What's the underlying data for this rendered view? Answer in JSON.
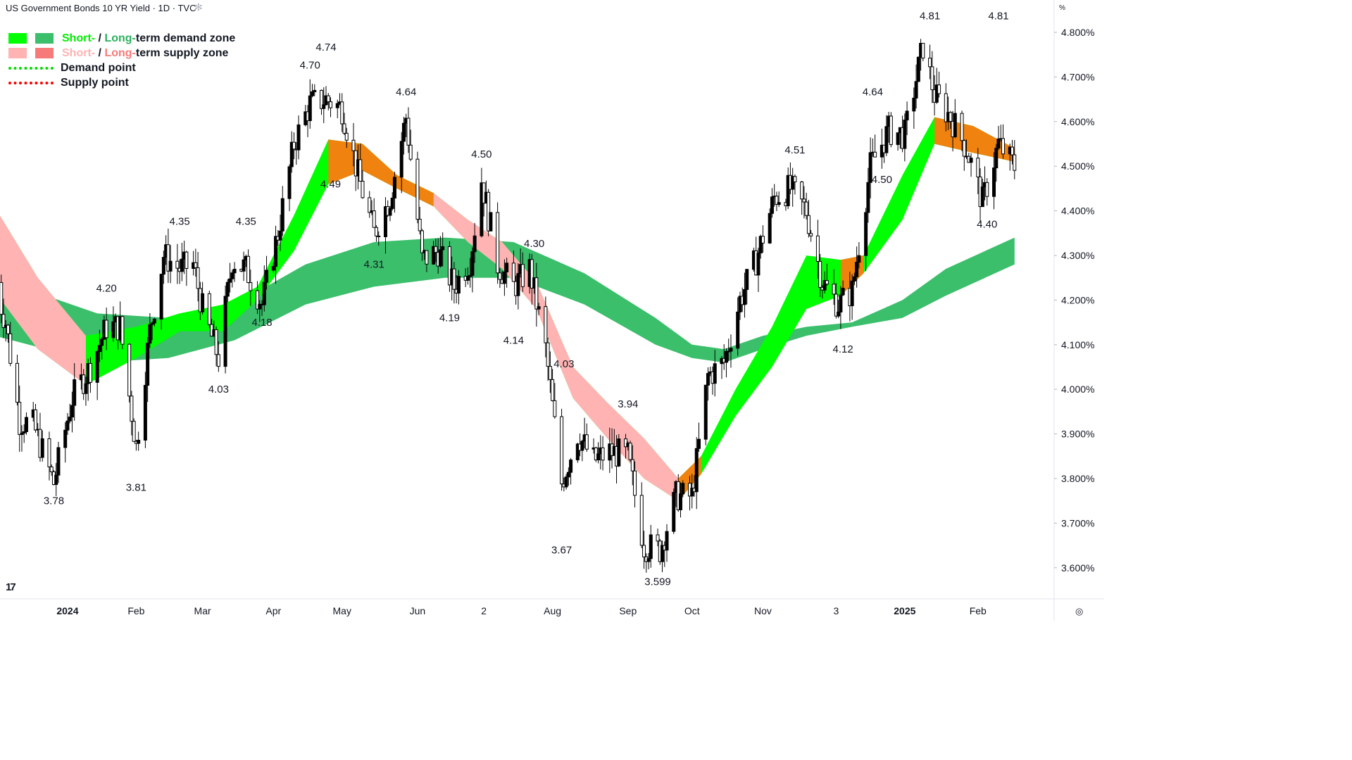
{
  "header": {
    "title": "US Government Bonds 10 YR Yield · 1D · TVC",
    "settings_icon": "sun-gear-icon"
  },
  "legend": {
    "demand_short": "Short-",
    "demand_sep": " / ",
    "demand_long": "Long-",
    "demand_rest": "term demand zone",
    "supply_short": "Short-",
    "supply_sep": " / ",
    "supply_long": "Long-",
    "supply_rest": "term supply zone",
    "demand_point": "Demand point",
    "supply_point": "Supply point"
  },
  "colors": {
    "short_demand": "#00ff00",
    "long_demand": "#3bbf6b",
    "short_supply": "#ffb3b3",
    "long_supply": "#f77a7a",
    "overlap_zone": "#f0820f",
    "demand_point": "#00dd00",
    "supply_point": "#ff0000",
    "candle": "#000000"
  },
  "axis": {
    "unit_label": "%",
    "logo": "17",
    "settings_icon": "target-icon"
  },
  "chart_data": {
    "type": "line",
    "title": "US Government Bonds 10 YR Yield · 1D · TVC",
    "ylim": [
      3.56,
      4.84
    ],
    "y_ticks": [
      "4.800%",
      "4.700%",
      "4.600%",
      "4.500%",
      "4.400%",
      "4.300%",
      "4.200%",
      "4.100%",
      "4.000%",
      "3.900%",
      "3.800%",
      "3.700%",
      "3.600%"
    ],
    "y_tick_values": [
      4.8,
      4.7,
      4.6,
      4.5,
      4.4,
      4.3,
      4.2,
      4.1,
      4.0,
      3.9,
      3.8,
      3.7,
      3.6
    ],
    "x_ticks": [
      {
        "label": "2024",
        "date": "2024-01-02",
        "bold": true
      },
      {
        "label": "Feb",
        "date": "2024-02-01"
      },
      {
        "label": "Mar",
        "date": "2024-03-01"
      },
      {
        "label": "Apr",
        "date": "2024-04-01"
      },
      {
        "label": "May",
        "date": "2024-05-01"
      },
      {
        "label": "Jun",
        "date": "2024-06-03"
      },
      {
        "label": "2",
        "date": "2024-07-02"
      },
      {
        "label": "Aug",
        "date": "2024-08-01"
      },
      {
        "label": "Sep",
        "date": "2024-09-03"
      },
      {
        "label": "Oct",
        "date": "2024-10-01"
      },
      {
        "label": "Nov",
        "date": "2024-11-01"
      },
      {
        "label": "3",
        "date": "2024-12-03"
      },
      {
        "label": "2025",
        "date": "2025-01-02",
        "bold": true
      },
      {
        "label": "Feb",
        "date": "2025-02-03"
      }
    ],
    "x_range": [
      "2023-12-01",
      "2025-02-28"
    ],
    "price_path": [
      [
        "2023-12-01",
        4.24
      ],
      [
        "2023-12-06",
        4.15
      ],
      [
        "2023-12-12",
        3.93
      ],
      [
        "2023-12-18",
        3.92
      ],
      [
        "2023-12-27",
        3.79
      ],
      [
        "2024-01-04",
        3.98
      ],
      [
        "2024-01-12",
        4.05
      ],
      [
        "2024-01-19",
        4.14
      ],
      [
        "2024-01-25",
        4.14
      ],
      [
        "2024-02-01",
        3.87
      ],
      [
        "2024-02-07",
        4.13
      ],
      [
        "2024-02-13",
        4.3
      ],
      [
        "2024-02-20",
        4.27
      ],
      [
        "2024-02-26",
        4.28
      ],
      [
        "2024-03-01",
        4.18
      ],
      [
        "2024-03-08",
        4.07
      ],
      [
        "2024-03-14",
        4.29
      ],
      [
        "2024-03-20",
        4.27
      ],
      [
        "2024-03-27",
        4.19
      ],
      [
        "2024-04-03",
        4.35
      ],
      [
        "2024-04-10",
        4.55
      ],
      [
        "2024-04-17",
        4.64
      ],
      [
        "2024-04-24",
        4.65
      ],
      [
        "2024-05-01",
        4.63
      ],
      [
        "2024-05-08",
        4.48
      ],
      [
        "2024-05-15",
        4.35
      ],
      [
        "2024-05-22",
        4.43
      ],
      [
        "2024-05-29",
        4.61
      ],
      [
        "2024-06-05",
        4.29
      ],
      [
        "2024-06-12",
        4.31
      ],
      [
        "2024-06-19",
        4.23
      ],
      [
        "2024-06-26",
        4.29
      ],
      [
        "2024-07-01",
        4.47
      ],
      [
        "2024-07-08",
        4.28
      ],
      [
        "2024-07-15",
        4.23
      ],
      [
        "2024-07-22",
        4.27
      ],
      [
        "2024-07-29",
        4.09
      ],
      [
        "2024-08-05",
        3.79
      ],
      [
        "2024-08-12",
        3.9
      ],
      [
        "2024-08-19",
        3.84
      ],
      [
        "2024-08-26",
        3.86
      ],
      [
        "2024-09-03",
        3.85
      ],
      [
        "2024-09-10",
        3.65
      ],
      [
        "2024-09-17",
        3.64
      ],
      [
        "2024-09-24",
        3.76
      ],
      [
        "2024-10-01",
        3.76
      ],
      [
        "2024-10-08",
        4.03
      ],
      [
        "2024-10-15",
        4.06
      ],
      [
        "2024-10-22",
        4.2
      ],
      [
        "2024-10-29",
        4.29
      ],
      [
        "2024-11-06",
        4.43
      ],
      [
        "2024-11-13",
        4.45
      ],
      [
        "2024-11-20",
        4.4
      ],
      [
        "2024-11-27",
        4.24
      ],
      [
        "2024-12-04",
        4.19
      ],
      [
        "2024-12-10",
        4.22
      ],
      [
        "2024-12-18",
        4.5
      ],
      [
        "2024-12-26",
        4.58
      ],
      [
        "2025-01-02",
        4.57
      ],
      [
        "2025-01-10",
        4.77
      ],
      [
        "2025-01-15",
        4.66
      ],
      [
        "2025-01-22",
        4.61
      ],
      [
        "2025-01-29",
        4.54
      ],
      [
        "2025-02-05",
        4.42
      ],
      [
        "2025-02-12",
        4.55
      ],
      [
        "2025-02-19",
        4.5
      ]
    ],
    "annotations": [
      {
        "text": "3.78",
        "date": "2023-12-27",
        "value": 3.78,
        "pos": "below"
      },
      {
        "text": "4.20",
        "date": "2024-01-19",
        "value": 4.2,
        "pos": "above"
      },
      {
        "text": "3.81",
        "date": "2024-02-01",
        "value": 3.81,
        "pos": "below"
      },
      {
        "text": "4.35",
        "date": "2024-02-20",
        "value": 4.35,
        "pos": "above"
      },
      {
        "text": "4.03",
        "date": "2024-03-08",
        "value": 4.03,
        "pos": "below"
      },
      {
        "text": "4.35",
        "date": "2024-03-20",
        "value": 4.35,
        "pos": "above"
      },
      {
        "text": "4.18",
        "date": "2024-03-27",
        "value": 4.18,
        "pos": "below"
      },
      {
        "text": "4.70",
        "date": "2024-04-17",
        "value": 4.7,
        "pos": "above"
      },
      {
        "text": "4.74",
        "date": "2024-04-24",
        "value": 4.74,
        "pos": "above"
      },
      {
        "text": "4.49",
        "date": "2024-04-26",
        "value": 4.49,
        "pos": "below"
      },
      {
        "text": "4.31",
        "date": "2024-05-15",
        "value": 4.31,
        "pos": "below"
      },
      {
        "text": "4.64",
        "date": "2024-05-29",
        "value": 4.64,
        "pos": "above"
      },
      {
        "text": "4.19",
        "date": "2024-06-17",
        "value": 4.19,
        "pos": "below"
      },
      {
        "text": "4.50",
        "date": "2024-07-01",
        "value": 4.5,
        "pos": "above"
      },
      {
        "text": "4.30",
        "date": "2024-07-24",
        "value": 4.3,
        "pos": "above"
      },
      {
        "text": "4.14",
        "date": "2024-07-15",
        "value": 4.14,
        "pos": "below"
      },
      {
        "text": "4.03",
        "date": "2024-08-06",
        "value": 4.03,
        "pos": "above"
      },
      {
        "text": "3.67",
        "date": "2024-08-05",
        "value": 3.67,
        "pos": "below"
      },
      {
        "text": "3.94",
        "date": "2024-09-03",
        "value": 3.94,
        "pos": "above"
      },
      {
        "text": "3.599",
        "date": "2024-09-16",
        "value": 3.599,
        "pos": "below"
      },
      {
        "text": "4.51",
        "date": "2024-11-15",
        "value": 4.51,
        "pos": "above"
      },
      {
        "text": "4.12",
        "date": "2024-12-06",
        "value": 4.12,
        "pos": "below"
      },
      {
        "text": "4.64",
        "date": "2024-12-19",
        "value": 4.64,
        "pos": "above"
      },
      {
        "text": "4.50",
        "date": "2024-12-23",
        "value": 4.5,
        "pos": "below"
      },
      {
        "text": "4.81",
        "date": "2025-01-13",
        "value": 4.81,
        "pos": "above"
      },
      {
        "text": "4.81",
        "date": "2025-02-12",
        "value": 4.81,
        "pos": "above"
      },
      {
        "text": "4.40",
        "date": "2025-02-07",
        "value": 4.4,
        "pos": "below"
      }
    ],
    "long_term_zone": [
      [
        "2023-12-01",
        4.25,
        4.12
      ],
      [
        "2024-01-15",
        4.17,
        4.06
      ],
      [
        "2024-02-15",
        4.16,
        4.07
      ],
      [
        "2024-03-15",
        4.19,
        4.11
      ],
      [
        "2024-04-15",
        4.28,
        4.19
      ],
      [
        "2024-05-15",
        4.33,
        4.23
      ],
      [
        "2024-06-15",
        4.34,
        4.25
      ],
      [
        "2024-07-15",
        4.33,
        4.25
      ],
      [
        "2024-08-15",
        4.26,
        4.19
      ],
      [
        "2024-09-15",
        4.16,
        4.1
      ],
      [
        "2024-10-01",
        4.1,
        4.07
      ],
      [
        "2024-10-15",
        4.09,
        4.06
      ],
      [
        "2024-11-01",
        4.12,
        4.09
      ],
      [
        "2024-11-20",
        4.14,
        4.12
      ],
      [
        "2024-12-10",
        4.15,
        4.14
      ],
      [
        "2025-01-01",
        4.2,
        4.16
      ],
      [
        "2025-01-20",
        4.27,
        4.21
      ],
      [
        "2025-02-19",
        4.34,
        4.28
      ]
    ],
    "short_term_zone": [
      [
        "2023-12-01",
        4.41,
        4.22
      ],
      [
        "2023-12-20",
        4.25,
        4.09
      ],
      [
        "2024-01-10",
        4.12,
        4.01
      ],
      [
        "2024-02-01",
        4.14,
        4.07
      ],
      [
        "2024-02-20",
        4.17,
        4.13
      ],
      [
        "2024-03-10",
        4.19,
        4.13
      ],
      [
        "2024-03-25",
        4.23,
        4.2
      ],
      [
        "2024-04-10",
        4.39,
        4.31
      ],
      [
        "2024-04-25",
        4.56,
        4.46
      ],
      [
        "2024-05-10",
        4.55,
        4.49
      ],
      [
        "2024-05-25",
        4.48,
        4.45
      ],
      [
        "2024-06-10",
        4.44,
        4.41
      ],
      [
        "2024-06-25",
        4.38,
        4.33
      ],
      [
        "2024-07-10",
        4.33,
        4.27
      ],
      [
        "2024-07-25",
        4.24,
        4.18
      ],
      [
        "2024-08-10",
        4.05,
        3.98
      ],
      [
        "2024-08-25",
        3.97,
        3.89
      ],
      [
        "2024-09-10",
        3.89,
        3.8
      ],
      [
        "2024-09-25",
        3.8,
        3.75
      ],
      [
        "2024-10-05",
        3.85,
        3.81
      ],
      [
        "2024-10-20",
        4.0,
        3.94
      ],
      [
        "2024-11-05",
        4.14,
        4.05
      ],
      [
        "2024-11-20",
        4.3,
        4.18
      ],
      [
        "2024-12-05",
        4.29,
        4.21
      ],
      [
        "2024-12-15",
        4.3,
        4.26
      ],
      [
        "2025-01-01",
        4.48,
        4.38
      ],
      [
        "2025-01-15",
        4.61,
        4.55
      ],
      [
        "2025-02-01",
        4.59,
        4.53
      ],
      [
        "2025-02-19",
        4.54,
        4.51
      ]
    ]
  }
}
